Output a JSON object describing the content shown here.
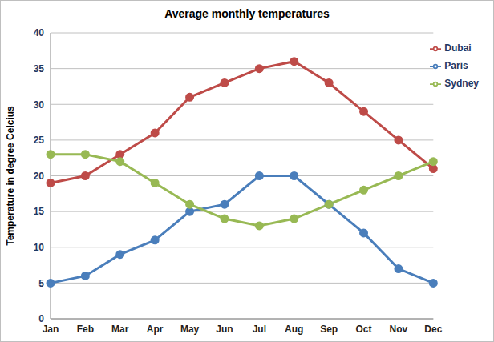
{
  "chart_data": {
    "type": "line",
    "title": "Average monthly temperatures",
    "y_label": "Temperature in degree Celcius",
    "categories": [
      "Jan",
      "Feb",
      "Mar",
      "Apr",
      "May",
      "Jun",
      "Jul",
      "Aug",
      "Sep",
      "Oct",
      "Nov",
      "Dec"
    ],
    "series": [
      {
        "name": "Paris",
        "color": "#4a7ebb",
        "values": [
          5,
          6,
          9,
          11,
          15,
          16,
          20,
          20,
          16,
          12,
          7,
          5
        ]
      },
      {
        "name": "Dubai",
        "color": "#be4b48",
        "values": [
          19,
          20,
          23,
          26,
          31,
          33,
          35,
          36,
          33,
          29,
          25,
          21
        ]
      },
      {
        "name": "Sydney",
        "color": "#98b954",
        "values": [
          23,
          23,
          22,
          19,
          16,
          14,
          13,
          14,
          16,
          18,
          20,
          22
        ]
      }
    ],
    "ylim": [
      0,
      40
    ],
    "yticks": [
      0,
      5,
      10,
      15,
      20,
      25,
      30,
      35,
      40
    ],
    "grid": true,
    "legend": "top right",
    "marker": "circle"
  }
}
